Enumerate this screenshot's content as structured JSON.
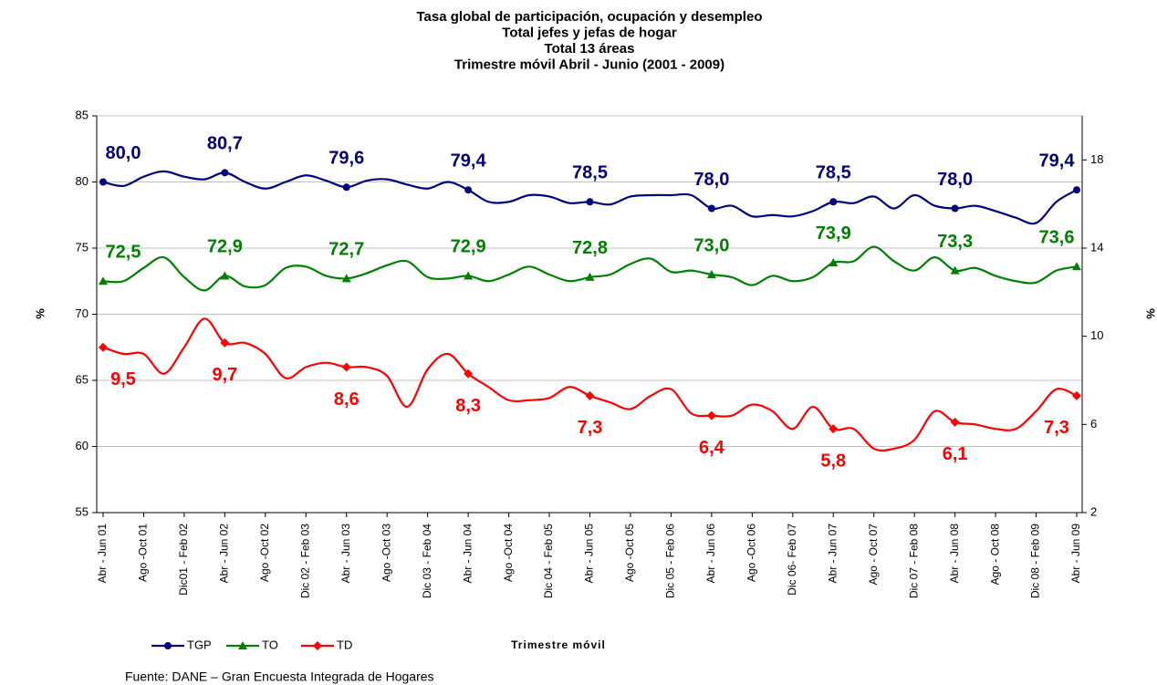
{
  "chart_data": {
    "type": "line",
    "title": [
      "Tasa global de participación, ocupación y desempleo",
      "Total jefes y jefas de hogar",
      "Total 13 áreas",
      "Trimestre móvil Abril - Junio (2001 - 2009)"
    ],
    "xlabel": "Trimestre móvil",
    "ylabel": "%",
    "y2label": "%",
    "source": "Fuente: DANE – Gran Encuesta Integrada de Hogares",
    "categories": [
      "Abr - Jun 01",
      null,
      "Ago -Oct 01",
      null,
      "Dic01 - Feb 02",
      null,
      "Abr - Jun 02",
      null,
      "Ago -Oct 02",
      null,
      "Dic 02 - Feb 03",
      null,
      "Abr - Jun 03",
      null,
      "Ago -Oct 03",
      null,
      "Dic 03 - Feb 04",
      null,
      "Abr - Jun 04",
      null,
      "Ago -Oct 04",
      null,
      "Dic 04 - Feb 05",
      null,
      "Abr - Jun 05",
      null,
      "Ago -Oct 05",
      null,
      "Dic 05 - Feb 06",
      null,
      "Abr - Jun 06",
      null,
      "Ago -Oct 06",
      null,
      "Dic  06- Feb 07",
      null,
      "Abr - Jun 07",
      null,
      "Ago - Oct 07",
      null,
      "Dic 07 - Feb 08",
      null,
      "Abr - Jun 08",
      null,
      "Ago - Oct 08",
      null,
      "Dic 08 - Feb 09",
      null,
      "Abr - Jun 09"
    ],
    "series": [
      {
        "name": "TGP",
        "color": "#000080",
        "marker": "circle",
        "label_side": "above",
        "values": [
          80.0,
          79.7,
          80.4,
          80.8,
          80.4,
          80.2,
          80.7,
          80.0,
          79.5,
          80.0,
          80.5,
          80.1,
          79.6,
          80.1,
          80.2,
          79.8,
          79.5,
          80.0,
          79.4,
          78.5,
          78.5,
          79.0,
          78.9,
          78.4,
          78.5,
          78.3,
          78.9,
          79.0,
          79.0,
          79.0,
          78.0,
          78.2,
          77.4,
          77.5,
          77.4,
          77.8,
          78.5,
          78.4,
          78.9,
          78.0,
          79.0,
          78.2,
          78.0,
          78.2,
          77.8,
          77.3,
          76.9,
          78.5,
          79.4
        ],
        "value_labels": [
          "80,0",
          null,
          null,
          null,
          null,
          null,
          "80,7",
          null,
          null,
          null,
          null,
          null,
          "79,6",
          null,
          null,
          null,
          null,
          null,
          "79,4",
          null,
          null,
          null,
          null,
          null,
          "78,5",
          null,
          null,
          null,
          null,
          null,
          "78,0",
          null,
          null,
          null,
          null,
          null,
          "78,5",
          null,
          null,
          null,
          null,
          null,
          "78,0",
          null,
          null,
          null,
          null,
          null,
          "79,4"
        ]
      },
      {
        "name": "TO",
        "color": "#008000",
        "marker": "triangle",
        "label_side": "above",
        "values": [
          72.5,
          72.5,
          73.5,
          74.3,
          72.8,
          71.8,
          72.9,
          72.1,
          72.2,
          73.5,
          73.6,
          72.9,
          72.7,
          73.1,
          73.7,
          74.0,
          72.8,
          72.7,
          72.9,
          72.5,
          73.0,
          73.6,
          73.0,
          72.5,
          72.8,
          73.0,
          73.8,
          74.2,
          73.2,
          73.3,
          73.0,
          72.8,
          72.2,
          72.9,
          72.5,
          72.8,
          73.9,
          74.0,
          75.1,
          74.0,
          73.3,
          74.3,
          73.3,
          73.5,
          72.9,
          72.5,
          72.4,
          73.3,
          73.6
        ],
        "value_labels": [
          "72,5",
          null,
          null,
          null,
          null,
          null,
          "72,9",
          null,
          null,
          null,
          null,
          null,
          "72,7",
          null,
          null,
          null,
          null,
          null,
          "72,9",
          null,
          null,
          null,
          null,
          null,
          "72,8",
          null,
          null,
          null,
          null,
          null,
          "73,0",
          null,
          null,
          null,
          null,
          null,
          "73,9",
          null,
          null,
          null,
          null,
          null,
          "73,3",
          null,
          null,
          null,
          null,
          null,
          "73,6"
        ]
      },
      {
        "name": "TD",
        "color": "#ff0000",
        "marker": "diamond",
        "axis": "y2",
        "label_side": "below",
        "values": [
          9.5,
          9.2,
          9.2,
          8.3,
          9.5,
          10.8,
          9.7,
          9.7,
          9.2,
          8.1,
          8.6,
          8.8,
          8.6,
          8.6,
          8.2,
          6.8,
          8.5,
          9.2,
          8.3,
          7.7,
          7.1,
          7.1,
          7.2,
          7.7,
          7.3,
          7.0,
          6.7,
          7.3,
          7.6,
          6.5,
          6.4,
          6.4,
          6.9,
          6.6,
          5.8,
          6.8,
          5.8,
          5.8,
          4.9,
          4.9,
          5.3,
          6.6,
          6.1,
          6.0,
          5.8,
          5.8,
          6.6,
          7.6,
          7.3
        ],
        "value_labels": [
          "9,5",
          null,
          null,
          null,
          null,
          null,
          "9,7",
          null,
          null,
          null,
          null,
          null,
          "8,6",
          null,
          null,
          null,
          null,
          null,
          "8,3",
          null,
          null,
          null,
          null,
          null,
          "7,3",
          null,
          null,
          null,
          null,
          null,
          "6,4",
          null,
          null,
          null,
          null,
          null,
          "5,8",
          null,
          null,
          null,
          null,
          null,
          "6,1",
          null,
          null,
          null,
          null,
          null,
          "7,3"
        ]
      }
    ],
    "ylim": [
      55,
      85
    ],
    "yticks": [
      55,
      60,
      65,
      70,
      75,
      80,
      85
    ],
    "y2lim": [
      2,
      20
    ],
    "y2ticks": [
      2,
      6,
      10,
      14,
      18
    ],
    "grid": true,
    "legend": "bottom-left"
  }
}
